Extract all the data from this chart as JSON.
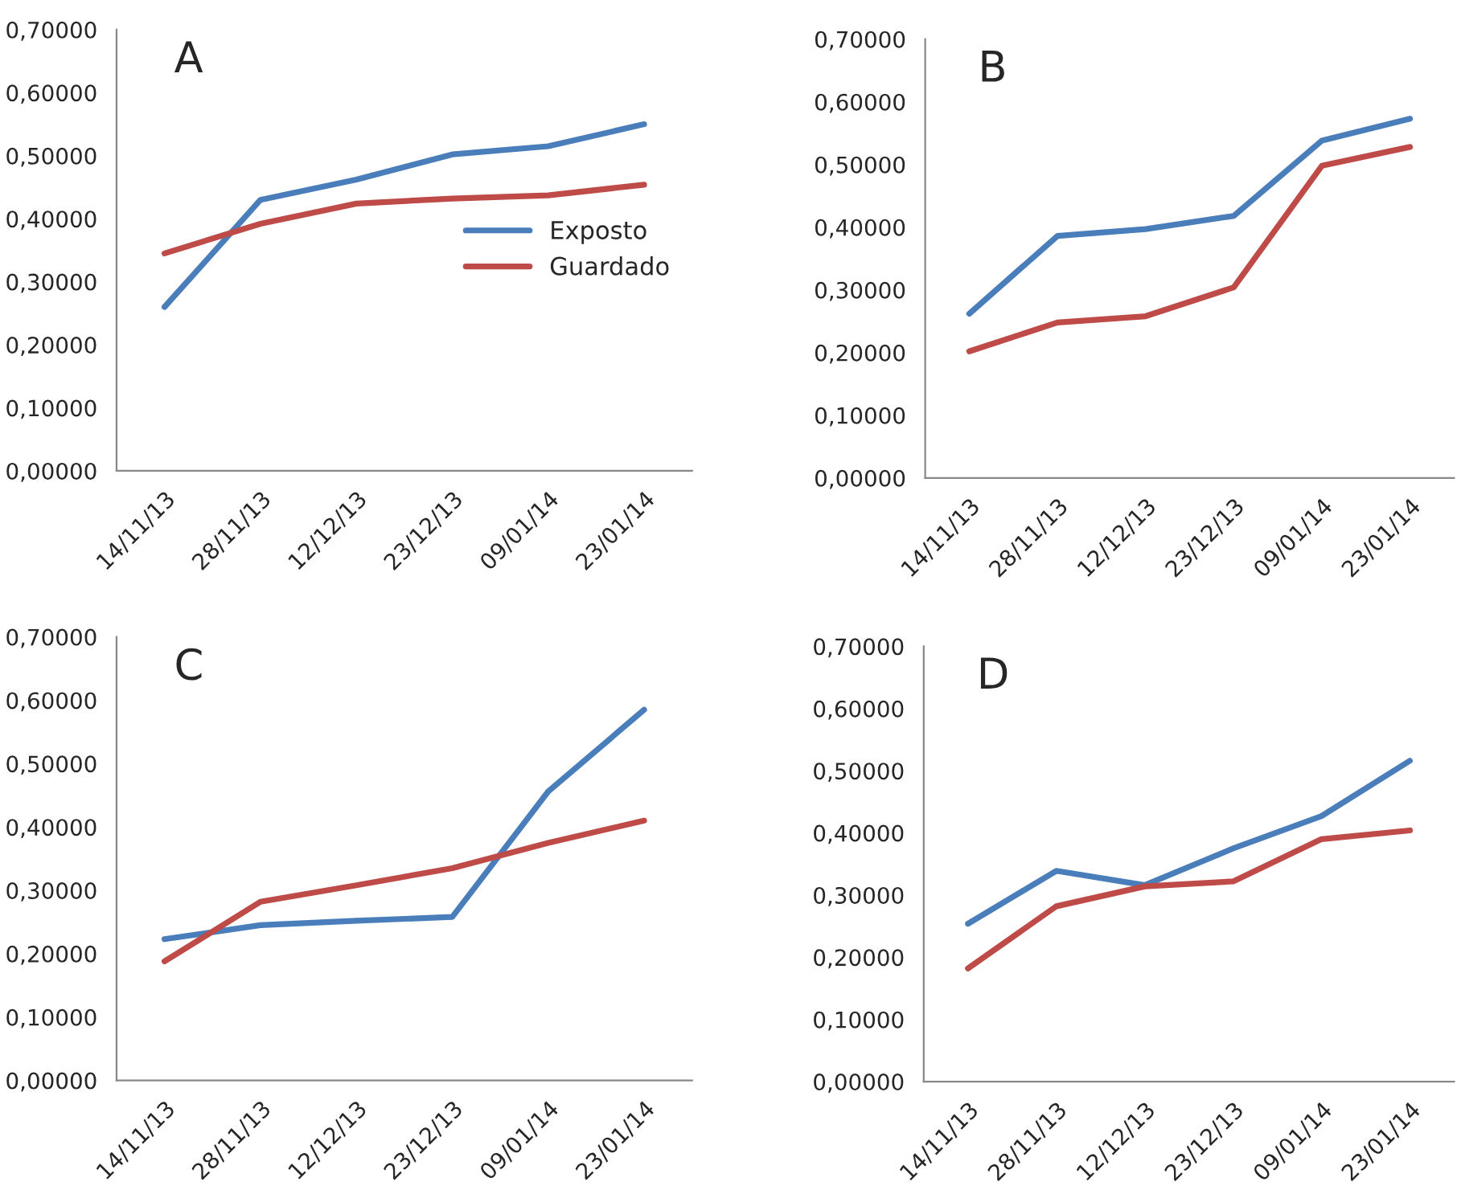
{
  "chart_data": [
    {
      "type": "line",
      "title": "A",
      "categories": [
        "14/11/13",
        "28/11/13",
        "12/12/13",
        "23/12/13",
        "09/01/14",
        "23/01/14"
      ],
      "series": [
        {
          "name": "Exposto",
          "color": "#4a7ebb",
          "values": [
            0.26,
            0.43,
            0.462,
            0.502,
            0.515,
            0.55
          ]
        },
        {
          "name": "Guardado",
          "color": "#be4b48",
          "values": [
            0.345,
            0.392,
            0.424,
            0.432,
            0.437,
            0.454
          ]
        }
      ],
      "ylim": [
        0,
        0.7
      ],
      "yticks": [
        {
          "value": 0,
          "label": "0,00000"
        },
        {
          "value": 0.1,
          "label": "0,10000"
        },
        {
          "value": 0.2,
          "label": "0,20000"
        },
        {
          "value": 0.3,
          "label": "0,30000"
        },
        {
          "value": 0.4,
          "label": "0,40000"
        },
        {
          "value": 0.5,
          "label": "0,50000"
        },
        {
          "value": 0.6,
          "label": "0,60000"
        },
        {
          "value": 0.7,
          "label": "0,70000"
        }
      ],
      "legend": "right",
      "marker": "none",
      "line_style": "solid"
    },
    {
      "type": "line",
      "title": "B",
      "categories": [
        "14/11/13",
        "28/11/13",
        "12/12/13",
        "23/12/13",
        "09/01/14",
        "23/01/14"
      ],
      "series": [
        {
          "color": "#4a7ebb",
          "values": [
            0.262,
            0.386,
            0.397,
            0.418,
            0.538,
            0.573
          ]
        },
        {
          "color": "#be4b48",
          "values": [
            0.202,
            0.248,
            0.258,
            0.304,
            0.498,
            0.528
          ]
        }
      ],
      "ylim": [
        0,
        0.7
      ],
      "yticks": [
        {
          "value": 0,
          "label": "0,00000"
        },
        {
          "value": 0.1,
          "label": "0,10000"
        },
        {
          "value": 0.2,
          "label": "0,20000"
        },
        {
          "value": 0.3,
          "label": "0,30000"
        },
        {
          "value": 0.4,
          "label": "0,40000"
        },
        {
          "value": 0.5,
          "label": "0,50000"
        },
        {
          "value": 0.6,
          "label": "0,60000"
        },
        {
          "value": 0.7,
          "label": "0,70000"
        }
      ],
      "marker": "none",
      "line_style": "solid"
    },
    {
      "type": "line",
      "title": "C",
      "categories": [
        "14/11/13",
        "28/11/13",
        "12/12/13",
        "23/12/13",
        "09/01/14",
        "23/01/14"
      ],
      "series": [
        {
          "color": "#4a7ebb",
          "values": [
            0.223,
            0.245,
            0.252,
            0.258,
            0.456,
            0.585
          ]
        },
        {
          "color": "#be4b48",
          "values": [
            0.188,
            0.282,
            0.308,
            0.335,
            0.375,
            0.41
          ]
        }
      ],
      "ylim": [
        0,
        0.7
      ],
      "yticks": [
        {
          "value": 0,
          "label": "0,00000"
        },
        {
          "value": 0.1,
          "label": "0,10000"
        },
        {
          "value": 0.2,
          "label": "0,20000"
        },
        {
          "value": 0.3,
          "label": "0,30000"
        },
        {
          "value": 0.4,
          "label": "0,40000"
        },
        {
          "value": 0.5,
          "label": "0,50000"
        },
        {
          "value": 0.6,
          "label": "0,60000"
        },
        {
          "value": 0.7,
          "label": "0,70000"
        }
      ],
      "marker": "none",
      "line_style": "solid"
    },
    {
      "type": "line",
      "title": "D",
      "categories": [
        "14/11/13",
        "28/11/13",
        "12/12/13",
        "23/12/13",
        "09/01/14",
        "23/01/14"
      ],
      "series": [
        {
          "color": "#4a7ebb",
          "values": [
            0.254,
            0.339,
            0.316,
            0.375,
            0.427,
            0.516
          ]
        },
        {
          "color": "#be4b48",
          "values": [
            0.182,
            0.282,
            0.314,
            0.322,
            0.39,
            0.404
          ]
        }
      ],
      "ylim": [
        0,
        0.7
      ],
      "yticks": [
        {
          "value": 0,
          "label": "0,00000"
        },
        {
          "value": 0.1,
          "label": "0,10000"
        },
        {
          "value": 0.2,
          "label": "0,20000"
        },
        {
          "value": 0.3,
          "label": "0,30000"
        },
        {
          "value": 0.4,
          "label": "0,40000"
        },
        {
          "value": 0.5,
          "label": "0,50000"
        },
        {
          "value": 0.6,
          "label": "0,60000"
        },
        {
          "value": 0.7,
          "label": "0,70000"
        }
      ],
      "marker": "none",
      "line_style": "solid"
    }
  ]
}
